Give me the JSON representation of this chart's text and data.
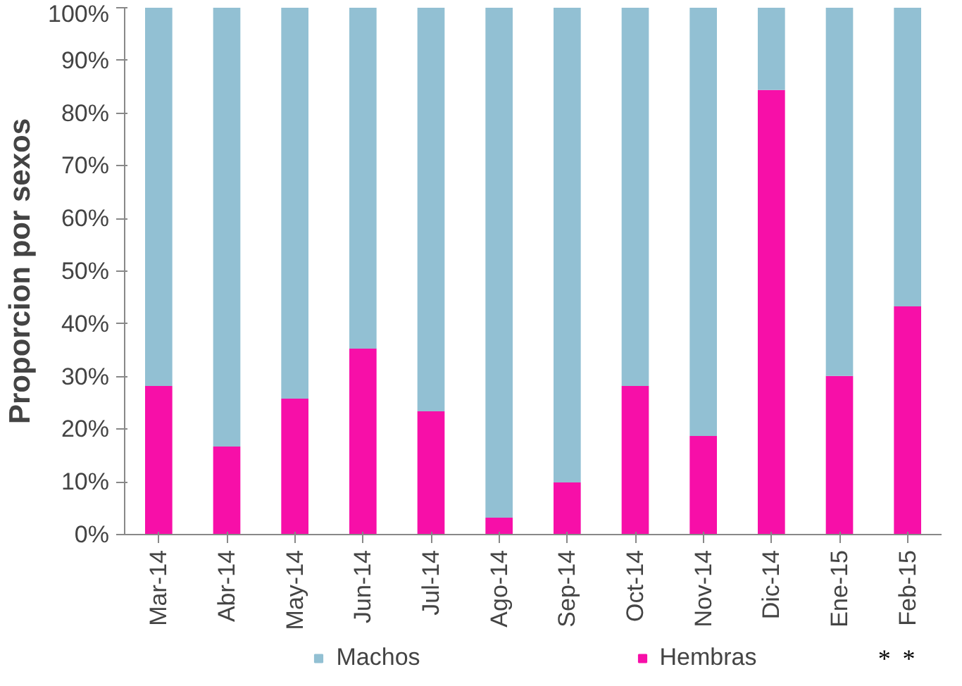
{
  "chart_data": {
    "type": "bar",
    "stacked": true,
    "ylabel": "Proporcion por sexos",
    "categories": [
      "Mar-14",
      "Abr-14",
      "May-14",
      "Jun-14",
      "Jul-14",
      "Ago-14",
      "Sep-14",
      "Oct-14",
      "Nov-14",
      "Dic-14",
      "Ene-15",
      "Feb-15"
    ],
    "series": [
      {
        "name": "Hembras",
        "color": "#f70fa8",
        "values": [
          28.2,
          16.7,
          25.8,
          35.3,
          23.4,
          3.2,
          9.9,
          28.2,
          18.7,
          84.4,
          30.1,
          43.3
        ]
      },
      {
        "name": "Machos",
        "color": "#92c0d3",
        "values": [
          71.8,
          83.3,
          74.2,
          64.7,
          76.6,
          96.8,
          90.1,
          71.8,
          81.3,
          15.6,
          69.9,
          56.7
        ]
      }
    ],
    "ylim": [
      0,
      100
    ],
    "yticks": [
      {
        "value": 0,
        "label": "0%"
      },
      {
        "value": 10,
        "label": "10%"
      },
      {
        "value": 20,
        "label": "20%"
      },
      {
        "value": 30,
        "label": "30%"
      },
      {
        "value": 40,
        "label": "40%"
      },
      {
        "value": 50,
        "label": "50%"
      },
      {
        "value": 60,
        "label": "60%"
      },
      {
        "value": 70,
        "label": "70%"
      },
      {
        "value": 80,
        "label": "80%"
      },
      {
        "value": 90,
        "label": "90%"
      },
      {
        "value": 100,
        "label": "100%"
      }
    ],
    "annotations": [
      "*",
      "*"
    ],
    "grid": false,
    "legend": "bottom"
  }
}
